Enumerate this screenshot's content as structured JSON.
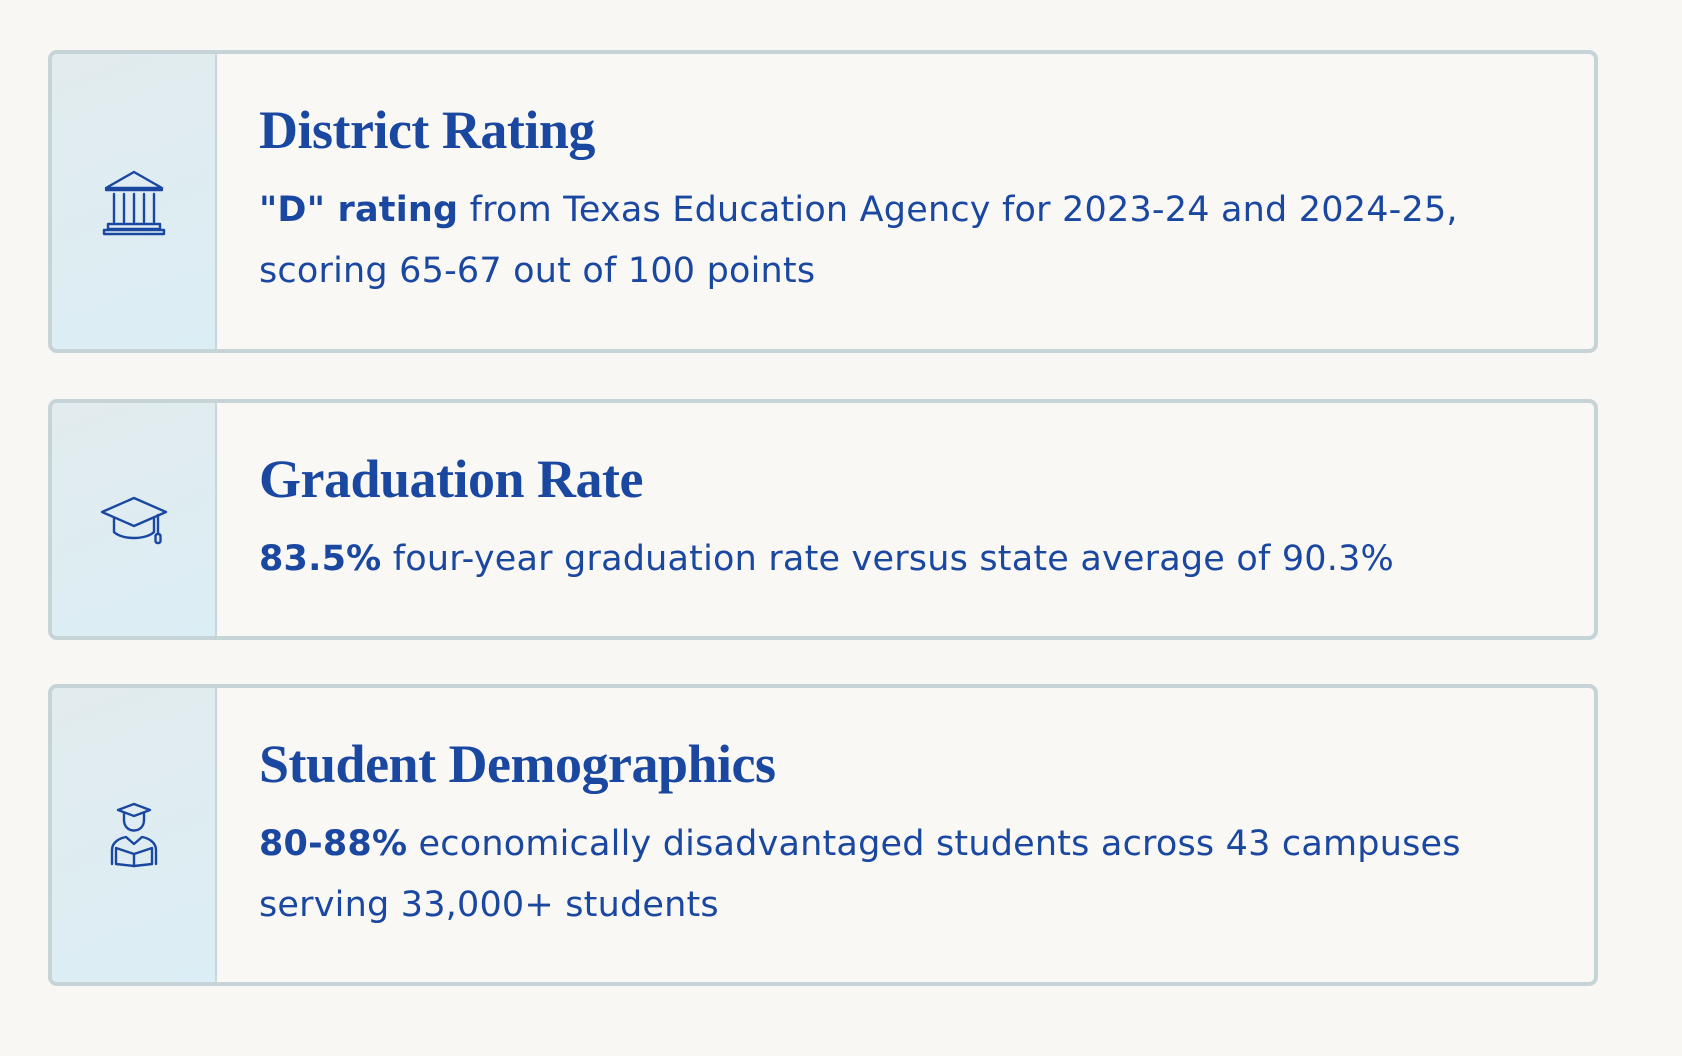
{
  "cards": [
    {
      "title": "District Rating",
      "highlight": "\"D\" rating",
      "text": "from Texas Education Agency for 2023-24 and 2024-25, scoring 65-67 out of 100 points"
    },
    {
      "title": "Graduation Rate",
      "highlight": "83.5%",
      "text": "four-year graduation rate versus state average of 90.3%"
    },
    {
      "title": "Student Demographics",
      "highlight": "80-88%",
      "text": "economically disadvantaged students across 43 campuses serving 33,000+ students"
    }
  ]
}
